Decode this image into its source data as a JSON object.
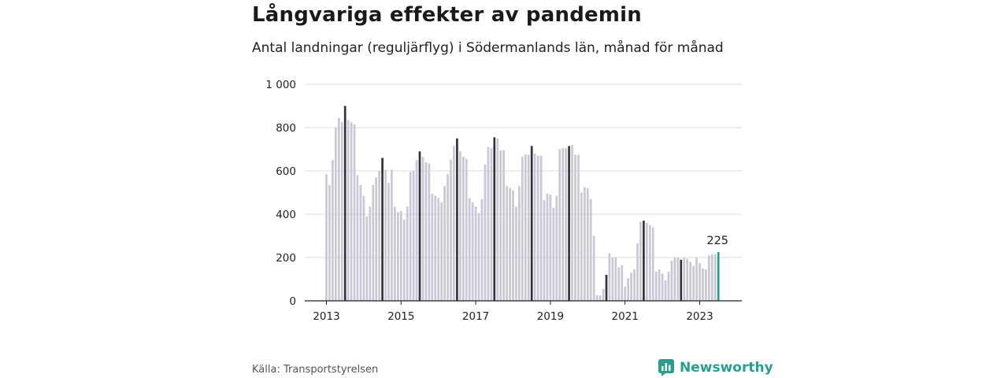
{
  "title": "Långvariga effekter av pandemin",
  "subtitle": "Antal landningar (reguljärflyg) i Södermanlands län, månad för månad",
  "source": "Källa: Transportstyrelsen",
  "brand": "Newsworthy",
  "colors": {
    "bar": "#c9c8d4",
    "july": "#33323d",
    "latest": "#2a9d8f",
    "grid": "#dcdce2",
    "axis": "#222222"
  },
  "chart_data": {
    "type": "bar",
    "x_start": "2013-01",
    "x_end": "2023-07",
    "ylim": [
      0,
      1000
    ],
    "y_ticks": [
      0,
      200,
      400,
      600,
      800,
      1000
    ],
    "y_tick_labels": [
      "0",
      "200",
      "400",
      "600",
      "800",
      "1 000"
    ],
    "x_ticks": [
      "2013-01",
      "2015-01",
      "2017-01",
      "2019-01",
      "2021-01",
      "2023-01"
    ],
    "x_tick_labels": [
      "2013",
      "2015",
      "2017",
      "2019",
      "2021",
      "2023"
    ],
    "highlight_month": "07",
    "annotation": {
      "label": "225",
      "month": "2023-07"
    },
    "values": [
      585,
      535,
      650,
      800,
      845,
      825,
      900,
      835,
      825,
      815,
      580,
      535,
      485,
      390,
      435,
      535,
      570,
      600,
      660,
      605,
      545,
      605,
      435,
      410,
      415,
      375,
      435,
      595,
      600,
      650,
      690,
      665,
      640,
      635,
      495,
      485,
      475,
      455,
      530,
      585,
      650,
      715,
      750,
      690,
      665,
      655,
      475,
      455,
      435,
      405,
      470,
      630,
      710,
      705,
      755,
      750,
      695,
      695,
      530,
      520,
      510,
      435,
      530,
      665,
      675,
      675,
      715,
      680,
      670,
      670,
      465,
      495,
      490,
      430,
      485,
      700,
      705,
      705,
      715,
      720,
      675,
      675,
      500,
      525,
      520,
      470,
      300,
      25,
      25,
      55,
      120,
      220,
      200,
      200,
      155,
      165,
      65,
      105,
      130,
      145,
      265,
      365,
      370,
      360,
      350,
      340,
      135,
      145,
      125,
      95,
      135,
      185,
      200,
      200,
      190,
      200,
      195,
      180,
      160,
      200,
      175,
      150,
      145,
      210,
      215,
      215,
      225
    ]
  }
}
